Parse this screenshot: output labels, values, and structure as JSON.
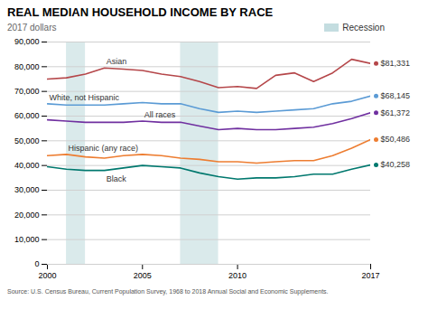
{
  "chart_data": {
    "type": "line",
    "title": "REAL MEDIAN HOUSEHOLD INCOME BY RACE",
    "subtitle": "2017 dollars",
    "source": "Source: U.S. Census Bureau, Current Population Survey, 1968 to 2018 Annual Social and Economic Supplements.",
    "recession": {
      "label": "Recession",
      "color": "#b5d5d8",
      "bands": [
        [
          2001,
          2002
        ],
        [
          2007,
          2009
        ]
      ]
    },
    "x": [
      2000,
      2001,
      2002,
      2003,
      2004,
      2005,
      2006,
      2007,
      2008,
      2009,
      2010,
      2011,
      2012,
      2013,
      2014,
      2015,
      2016,
      2017
    ],
    "xlim": [
      2000,
      2017
    ],
    "xticks": [
      2000,
      2005,
      2010,
      2017
    ],
    "ylim": [
      0,
      90000
    ],
    "yticks": [
      0,
      {
        "value": 10000,
        "label": "10,000"
      },
      {
        "value": 20000,
        "label": "20,000"
      },
      {
        "value": 30000,
        "label": "30,000"
      },
      {
        "value": 40000,
        "label": "40,000"
      },
      {
        "value": 50000,
        "label": "50,000"
      },
      {
        "value": 60000,
        "label": "60,000"
      },
      {
        "value": 70000,
        "label": "70,000"
      },
      {
        "value": 80000,
        "label": "80,000"
      },
      {
        "value": 90000,
        "label": "90,000"
      }
    ],
    "grid": true,
    "series": [
      {
        "name": "Asian",
        "color": "#b5474a",
        "end_label": "$81,331",
        "end_value": 81331,
        "values": [
          75000,
          75500,
          77000,
          79500,
          79000,
          78500,
          77000,
          76000,
          74000,
          71500,
          72000,
          71200,
          76500,
          77500,
          74000,
          77500,
          83000,
          81331
        ]
      },
      {
        "name": "White, not Hispanic",
        "color": "#5b9bd5",
        "end_label": "$68,145",
        "end_value": 68145,
        "values": [
          65000,
          64500,
          64500,
          64500,
          65000,
          65500,
          65000,
          65000,
          63000,
          61500,
          62000,
          61500,
          62000,
          62500,
          63000,
          65000,
          66000,
          68145
        ]
      },
      {
        "name": "All races",
        "color": "#7030a0",
        "end_label": "$61,372",
        "end_value": 61372,
        "values": [
          58500,
          58000,
          57500,
          57500,
          57500,
          58000,
          57500,
          57500,
          56000,
          54500,
          55000,
          54500,
          54500,
          55000,
          55500,
          57000,
          59000,
          61372
        ]
      },
      {
        "name": "Hispanic (any race)",
        "color": "#ed7d31",
        "end_label": "$50,486",
        "end_value": 50486,
        "values": [
          44000,
          44500,
          43500,
          43000,
          44000,
          44500,
          44000,
          43000,
          42500,
          41500,
          41500,
          41000,
          41500,
          42000,
          42000,
          44000,
          47000,
          50486
        ]
      },
      {
        "name": "Black",
        "color": "#00786e",
        "end_label": "$40,258",
        "end_value": 40258,
        "values": [
          39500,
          38500,
          38000,
          38000,
          39000,
          40000,
          39500,
          39000,
          37000,
          35500,
          34500,
          35000,
          35000,
          35500,
          36500,
          36500,
          38500,
          40258
        ]
      }
    ]
  }
}
